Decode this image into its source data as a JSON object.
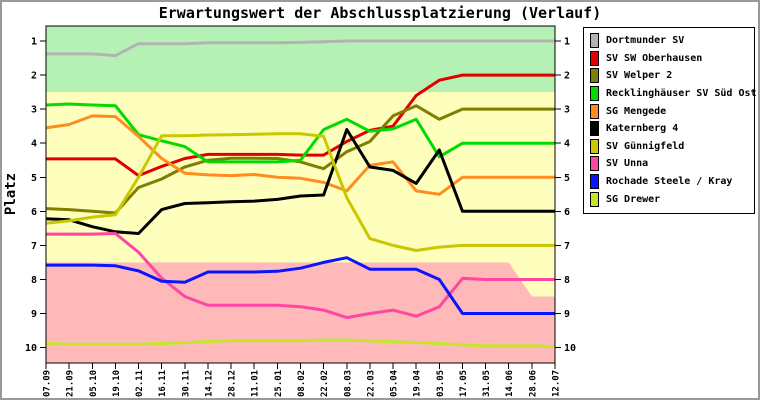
{
  "title": "Erwartungswert der Abschlussplatzierung (Verlauf)",
  "y_axis": {
    "label": "Platz",
    "ticks": [
      "1",
      "2",
      "3",
      "4",
      "5",
      "6",
      "7",
      "8",
      "9",
      "10"
    ]
  },
  "x_axis": {
    "ticks": [
      "07.09",
      "21.09",
      "05.10",
      "19.10",
      "02.11",
      "16.11",
      "30.11",
      "14.12",
      "28.12",
      "11.01",
      "25.01",
      "08.02",
      "22.02",
      "08.03",
      "22.03",
      "05.04",
      "19.04",
      "03.05",
      "17.05",
      "31.05",
      "14.06",
      "28.06",
      "12.07"
    ]
  },
  "chart_data": {
    "type": "line",
    "title": "Erwartungswert der Abschlussplatzierung (Verlauf)",
    "xlabel": "",
    "ylabel": "Platz",
    "x": [
      "07.09",
      "21.09",
      "05.10",
      "19.10",
      "02.11",
      "16.11",
      "30.11",
      "14.12",
      "28.12",
      "11.01",
      "25.01",
      "08.02",
      "22.02",
      "08.03",
      "22.03",
      "05.04",
      "19.04",
      "03.05",
      "17.05",
      "31.05",
      "14.06",
      "28.06",
      "12.07"
    ],
    "ylim": [
      0.56,
      10.45
    ],
    "y_inverted": true,
    "y_ticks": [
      1,
      2,
      3,
      4,
      5,
      6,
      7,
      8,
      9,
      10
    ],
    "grid": false,
    "legend_position": "top-right",
    "series": [
      {
        "name": "Dortmunder SV",
        "color": "#b3b3b3",
        "values": [
          1.38,
          1.38,
          1.38,
          1.43,
          1.08,
          1.08,
          1.08,
          1.05,
          1.05,
          1.05,
          1.05,
          1.04,
          1.02,
          1.0,
          1.0,
          1.0,
          1.0,
          1.0,
          1.0,
          1.0,
          1.0,
          1.0,
          1.0
        ]
      },
      {
        "name": "SV SW Oberhausen",
        "color": "#e00000",
        "values": [
          4.46,
          4.46,
          4.46,
          4.46,
          4.95,
          4.68,
          4.45,
          4.33,
          4.33,
          4.33,
          4.33,
          4.35,
          4.35,
          3.95,
          3.62,
          3.5,
          2.6,
          2.15,
          2.0,
          2.0,
          2.0,
          2.0,
          2.0
        ]
      },
      {
        "name": "SV Welper 2",
        "color": "#7e7e00",
        "values": [
          5.92,
          5.95,
          6.0,
          6.05,
          5.3,
          5.05,
          4.7,
          4.5,
          4.44,
          4.44,
          4.45,
          4.55,
          4.75,
          4.25,
          3.95,
          3.2,
          2.9,
          3.3,
          3.0,
          3.0,
          3.0,
          3.0,
          3.0
        ]
      },
      {
        "name": "Recklinghäuser SV Süd Ost",
        "color": "#00dc00",
        "values": [
          2.88,
          2.85,
          2.88,
          2.9,
          3.75,
          3.93,
          4.1,
          4.55,
          4.55,
          4.55,
          4.55,
          4.5,
          3.6,
          3.3,
          3.65,
          3.58,
          3.3,
          4.4,
          4.0,
          4.0,
          4.0,
          4.0,
          4.0
        ]
      },
      {
        "name": "SG Mengede",
        "color": "#ff8c1e",
        "values": [
          3.55,
          3.45,
          3.2,
          3.22,
          3.8,
          4.45,
          4.88,
          4.93,
          4.95,
          4.92,
          5.0,
          5.03,
          5.15,
          5.4,
          4.65,
          4.55,
          5.4,
          5.5,
          5.0,
          5.0,
          5.0,
          5.0,
          5.0
        ]
      },
      {
        "name": "Katernberg 4",
        "color": "#000000",
        "values": [
          6.22,
          6.25,
          6.45,
          6.6,
          6.65,
          5.95,
          5.77,
          5.75,
          5.72,
          5.7,
          5.65,
          5.55,
          5.52,
          3.6,
          4.7,
          4.8,
          5.18,
          4.2,
          6.0,
          6.0,
          6.0,
          6.0,
          6.0
        ]
      },
      {
        "name": "SV Günnigfeld",
        "color": "#c8c800",
        "values": [
          6.35,
          6.28,
          6.17,
          6.1,
          5.0,
          3.78,
          3.78,
          3.76,
          3.75,
          3.74,
          3.72,
          3.72,
          3.8,
          5.6,
          6.8,
          7.0,
          7.15,
          7.05,
          7.0,
          7.0,
          7.0,
          7.0,
          7.0
        ]
      },
      {
        "name": "SV Unna",
        "color": "#ff46a0",
        "values": [
          6.67,
          6.67,
          6.67,
          6.65,
          7.2,
          7.96,
          8.5,
          8.76,
          8.76,
          8.76,
          8.76,
          8.8,
          8.9,
          9.12,
          9.0,
          8.9,
          9.08,
          8.8,
          7.97,
          8.0,
          8.0,
          8.0,
          8.0
        ]
      },
      {
        "name": "Rochade Steele / Kray",
        "color": "#0a14ff",
        "values": [
          7.58,
          7.58,
          7.58,
          7.6,
          7.75,
          8.05,
          8.08,
          7.78,
          7.78,
          7.78,
          7.76,
          7.67,
          7.5,
          7.36,
          7.7,
          7.7,
          7.7,
          8.0,
          9.0,
          9.0,
          9.0,
          9.0,
          9.0
        ]
      },
      {
        "name": "SG Drewer",
        "color": "#c6e62e",
        "values": [
          9.88,
          9.9,
          9.9,
          9.9,
          9.9,
          9.88,
          9.86,
          9.82,
          9.8,
          9.8,
          9.8,
          9.8,
          9.78,
          9.78,
          9.8,
          9.83,
          9.85,
          9.88,
          9.92,
          9.95,
          9.95,
          9.95,
          9.97
        ]
      }
    ],
    "background_zones": {
      "promotion_color": "#b5f1b5",
      "neutral_color": "#ffffbd",
      "relegation_color": "#ffb9b9",
      "green_yellow_boundary_platz": 2.5,
      "yellow_pink_boundary": [
        [
          0,
          7.5
        ],
        [
          20,
          7.5
        ],
        [
          21,
          8.5
        ],
        [
          22,
          8.5
        ]
      ]
    }
  }
}
